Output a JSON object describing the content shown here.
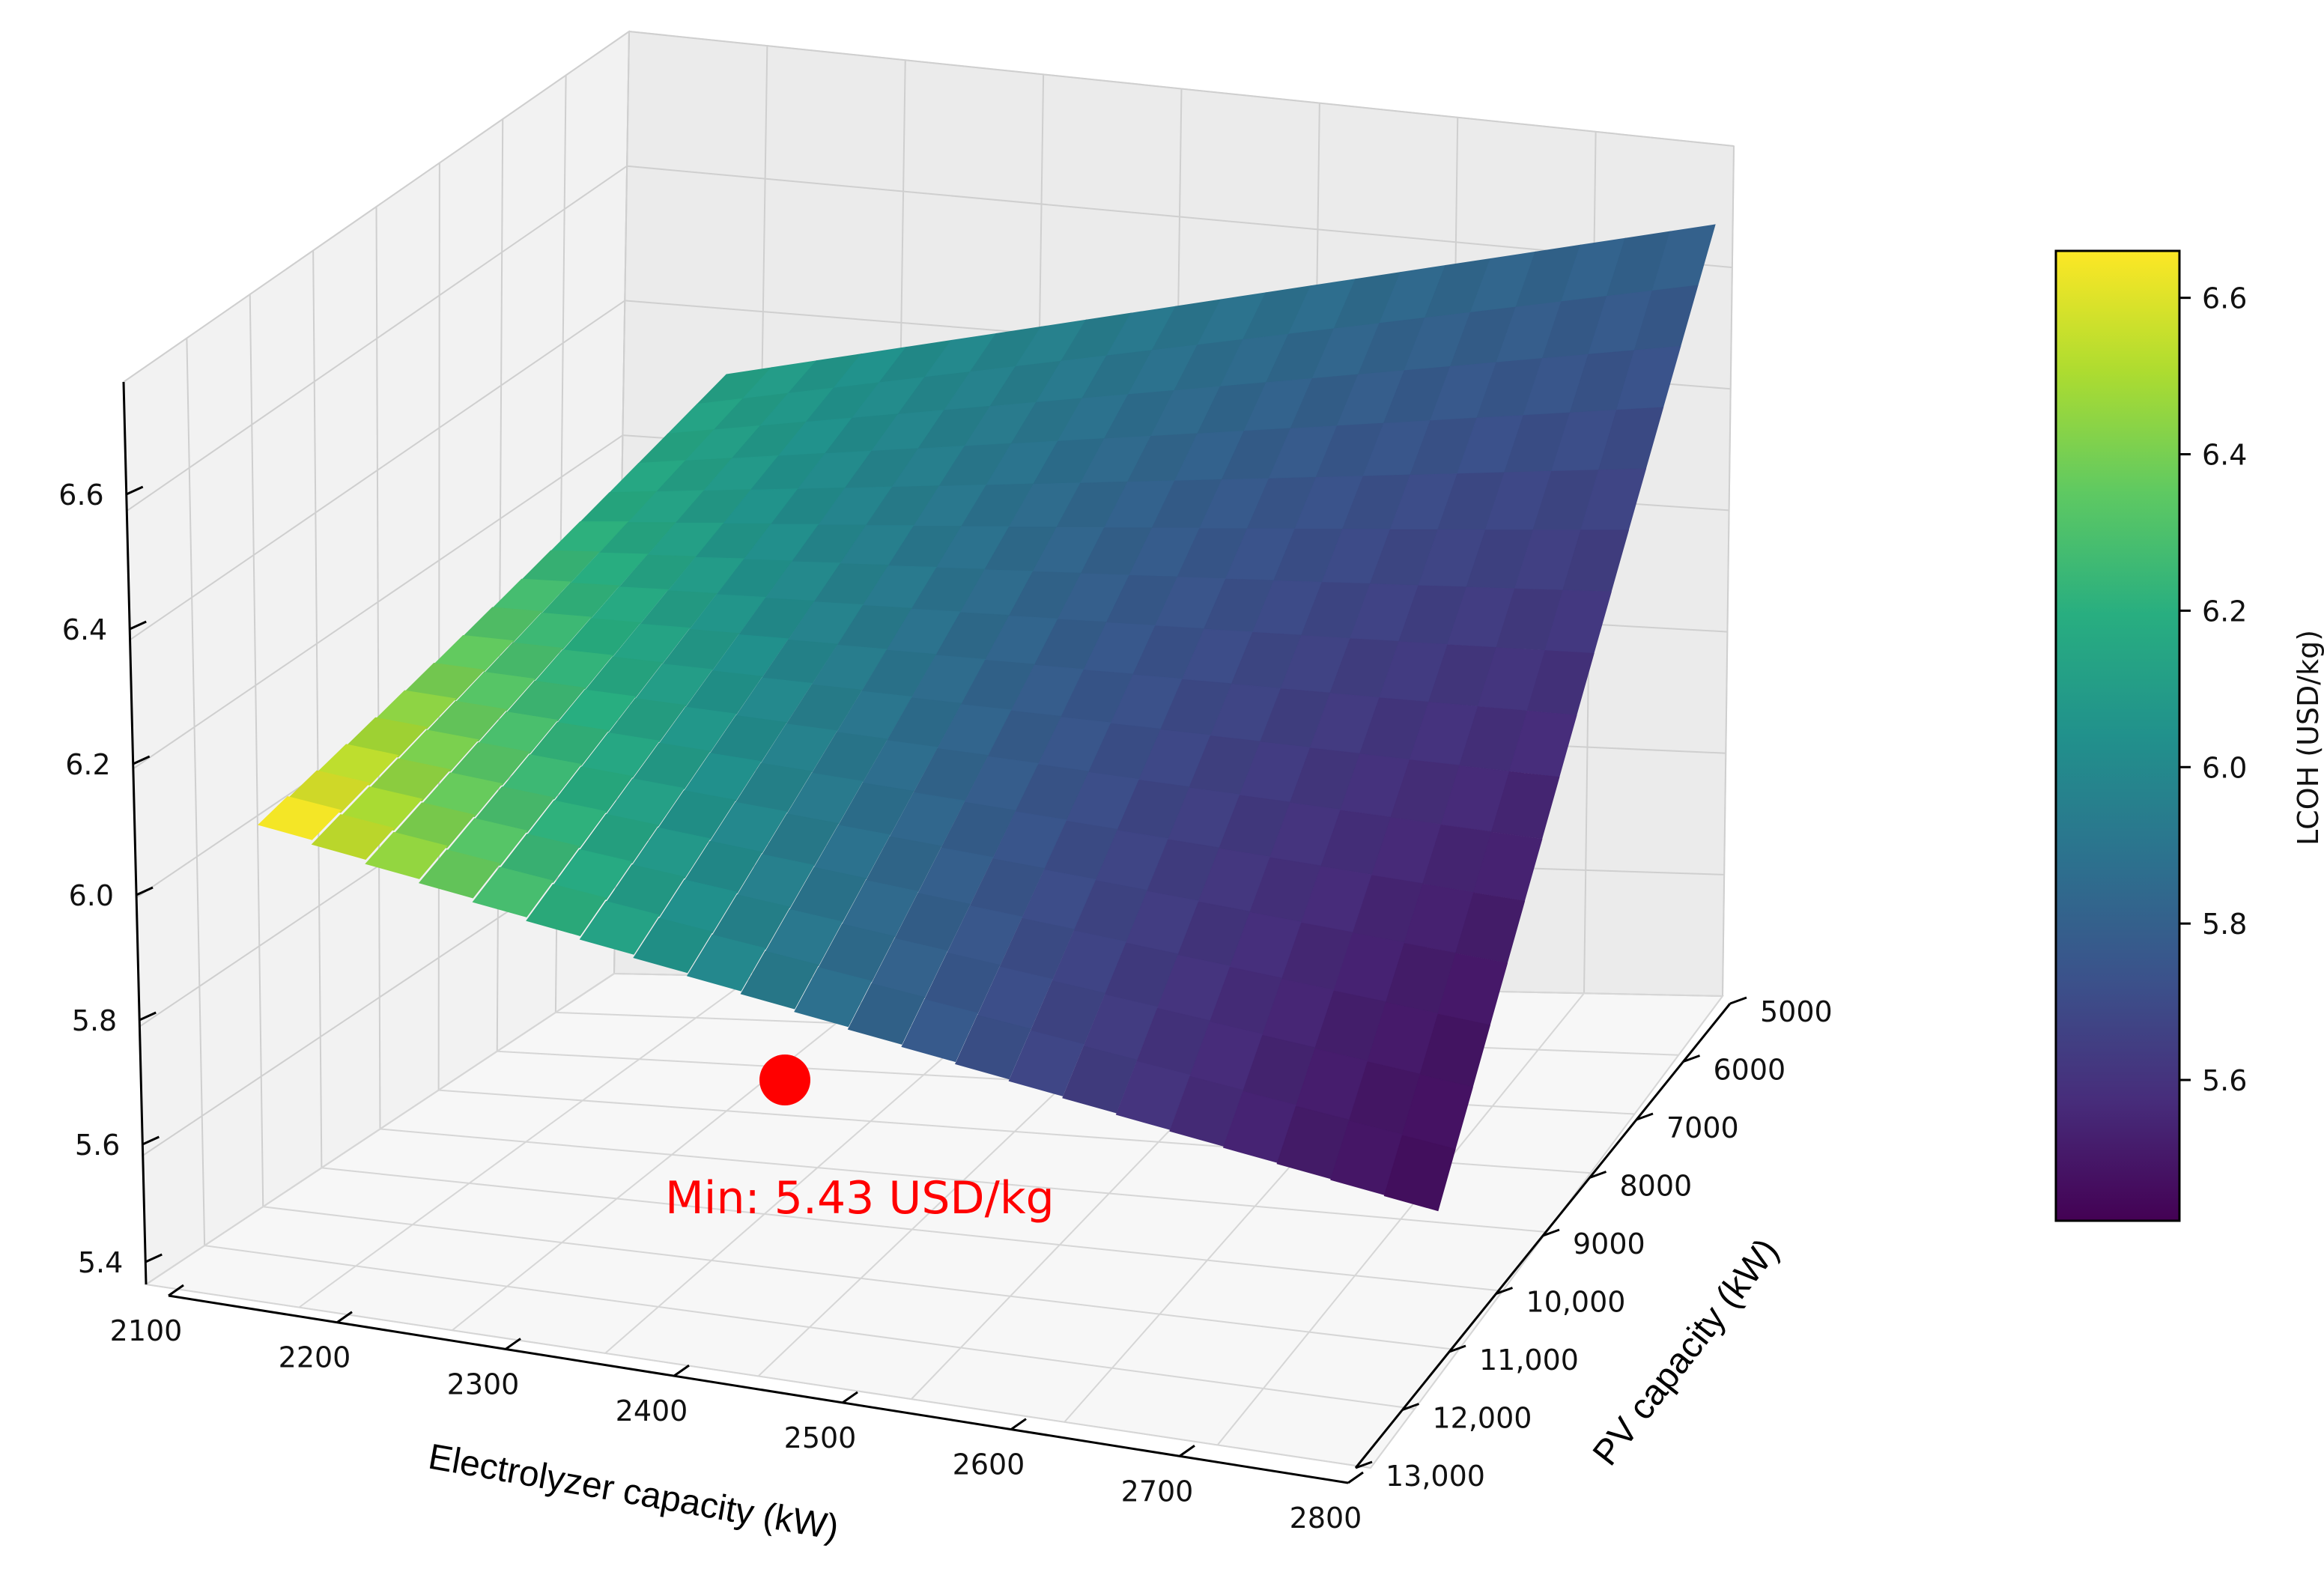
{
  "chart_data": {
    "type": "surface3d",
    "x_axis": {
      "label": "Electrolyzer capacity (kW)",
      "ticks": [
        "2100",
        "2200",
        "2300",
        "2400",
        "2500",
        "2600",
        "2700",
        "2800"
      ],
      "range": [
        2100,
        2800
      ]
    },
    "y_axis": {
      "label": "PV capacity (kW)",
      "ticks": [
        "5000",
        "6000",
        "7000",
        "8000",
        "9000",
        "10,000",
        "11,000",
        "12,000",
        "13,000"
      ],
      "range": [
        5000,
        13000
      ]
    },
    "z_axis": {
      "ticks": [
        "5.4",
        "5.6",
        "5.8",
        "6.0",
        "6.2",
        "6.4",
        "6.6"
      ],
      "range": [
        5.4,
        6.7
      ]
    },
    "colorbar": {
      "label": "LCOH (USD/kg)",
      "ticks": [
        "5.6",
        "5.8",
        "6.0",
        "6.2",
        "6.4",
        "6.6"
      ],
      "range": [
        5.42,
        6.66
      ],
      "colormap": "viridis"
    },
    "minimum": {
      "value": 5.43,
      "annotation": "Min: 5.43 USD/kg",
      "color": "#ff0000"
    },
    "grid": true
  }
}
